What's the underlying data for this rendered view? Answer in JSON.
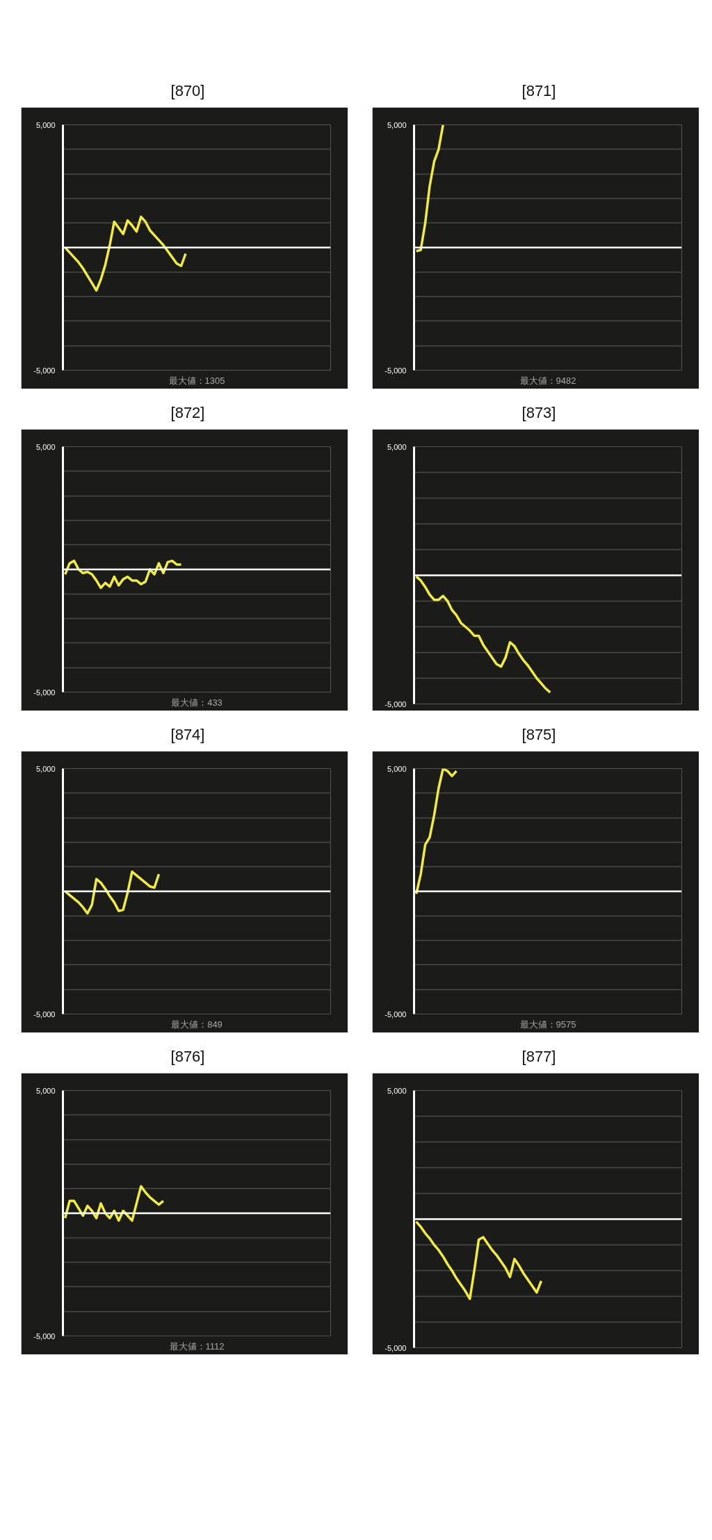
{
  "chart_data": [
    {
      "type": "line",
      "title": "[870]",
      "categories": [
        null,
        null,
        null,
        null,
        null,
        null,
        null,
        null,
        null,
        null,
        null,
        null,
        null,
        null,
        null,
        null,
        null,
        null,
        null,
        null,
        null,
        null,
        null,
        null,
        null,
        null,
        null,
        null,
        null,
        null,
        null,
        null,
        null,
        null,
        null,
        null,
        null,
        null,
        null,
        null,
        null,
        null,
        null,
        null,
        null,
        null,
        null,
        null,
        null,
        null,
        null,
        null,
        null,
        null,
        null,
        null,
        null,
        null,
        null,
        null
      ],
      "series": [
        {
          "color": "#f2ec3a",
          "values": [
            0,
            -200,
            -400,
            -600,
            -850,
            -1150,
            -1450,
            -1750,
            -1300,
            -700,
            100,
            1050,
            800,
            550,
            1100,
            900,
            650,
            1250,
            1050,
            700,
            500,
            300,
            100,
            -150,
            -400,
            -650,
            -750,
            -250,
            null,
            null,
            null,
            null,
            null,
            null,
            null,
            null,
            null,
            null,
            null,
            null,
            null,
            null,
            null,
            null,
            null,
            null,
            null,
            null,
            null,
            null,
            null,
            null,
            null,
            null,
            null,
            null,
            null,
            null,
            null,
            null
          ]
        }
      ],
      "ylim": [
        -5000,
        5000
      ],
      "yticks": [
        {
          "value": -5000,
          "label": "-5,000"
        },
        {
          "value": -4000,
          "label": null
        },
        {
          "value": -3000,
          "label": null
        },
        {
          "value": -2000,
          "label": null
        },
        {
          "value": -1000,
          "label": null
        },
        {
          "value": 0,
          "label": null
        },
        {
          "value": 1000,
          "label": null
        },
        {
          "value": 2000,
          "label": null
        },
        {
          "value": 3000,
          "label": null
        },
        {
          "value": 4000,
          "label": null
        },
        {
          "value": 5000,
          "label": "5,000"
        }
      ],
      "grid": "y",
      "tick_labels": "y",
      "ref_lines": [
        {
          "axis": "y",
          "value": 0,
          "color": "#ffffff"
        }
      ],
      "annotations": [
        "最大値：1305"
      ]
    },
    {
      "type": "line",
      "title": "[871]",
      "categories": [
        null,
        null,
        null,
        null,
        null,
        null,
        null,
        null,
        null,
        null,
        null,
        null,
        null,
        null,
        null,
        null,
        null,
        null,
        null,
        null,
        null,
        null,
        null,
        null,
        null,
        null,
        null,
        null,
        null,
        null,
        null,
        null,
        null,
        null,
        null,
        null,
        null,
        null,
        null,
        null,
        null,
        null,
        null,
        null,
        null,
        null,
        null,
        null,
        null,
        null,
        null,
        null,
        null,
        null,
        null,
        null,
        null,
        null,
        null,
        null
      ],
      "series": [
        {
          "color": "#f2ec3a",
          "values": [
            -150,
            -100,
            1000,
            2500,
            3500,
            4000,
            5000,
            null,
            null,
            null,
            null,
            null,
            null,
            null,
            null,
            null,
            null,
            null,
            null,
            null,
            null,
            null,
            null,
            null,
            null,
            null,
            null,
            null,
            null,
            null,
            null,
            null,
            null,
            null,
            null,
            null,
            null,
            null,
            null,
            null,
            null,
            null,
            null,
            null,
            null,
            null,
            null,
            null,
            null,
            null,
            null,
            null,
            null,
            null,
            null,
            null,
            null,
            null,
            null,
            null
          ]
        }
      ],
      "ylim": [
        -5000,
        5000
      ],
      "yticks": [
        {
          "value": -5000,
          "label": "-5,000"
        },
        {
          "value": -4000,
          "label": null
        },
        {
          "value": -3000,
          "label": null
        },
        {
          "value": -2000,
          "label": null
        },
        {
          "value": -1000,
          "label": null
        },
        {
          "value": 0,
          "label": null
        },
        {
          "value": 1000,
          "label": null
        },
        {
          "value": 2000,
          "label": null
        },
        {
          "value": 3000,
          "label": null
        },
        {
          "value": 4000,
          "label": null
        },
        {
          "value": 5000,
          "label": "5,000"
        }
      ],
      "grid": "y",
      "tick_labels": "y",
      "ref_lines": [
        {
          "axis": "y",
          "value": 0,
          "color": "#ffffff"
        }
      ],
      "annotations": [
        "最大値：9482"
      ]
    },
    {
      "type": "line",
      "title": "[872]",
      "categories": [
        null,
        null,
        null,
        null,
        null,
        null,
        null,
        null,
        null,
        null,
        null,
        null,
        null,
        null,
        null,
        null,
        null,
        null,
        null,
        null,
        null,
        null,
        null,
        null,
        null,
        null,
        null,
        null,
        null,
        null,
        null,
        null,
        null,
        null,
        null,
        null,
        null,
        null,
        null,
        null,
        null,
        null,
        null,
        null,
        null,
        null,
        null,
        null,
        null,
        null,
        null,
        null,
        null,
        null,
        null,
        null,
        null,
        null,
        null,
        null
      ],
      "series": [
        {
          "color": "#f2ec3a",
          "values": [
            -200,
            250,
            350,
            0,
            -150,
            -100,
            -200,
            -450,
            -750,
            -550,
            -700,
            -300,
            -650,
            -400,
            -300,
            -450,
            -450,
            -600,
            -500,
            0,
            -200,
            250,
            -150,
            300,
            350,
            200,
            200,
            null,
            null,
            null,
            null,
            null,
            null,
            null,
            null,
            null,
            null,
            null,
            null,
            null,
            null,
            null,
            null,
            null,
            null,
            null,
            null,
            null,
            null,
            null,
            null,
            null,
            null,
            null,
            null,
            null,
            null,
            null,
            null,
            null
          ]
        }
      ],
      "ylim": [
        -5000,
        5000
      ],
      "yticks": [
        {
          "value": -5000,
          "label": "-5,000"
        },
        {
          "value": -4000,
          "label": null
        },
        {
          "value": -3000,
          "label": null
        },
        {
          "value": -2000,
          "label": null
        },
        {
          "value": -1000,
          "label": null
        },
        {
          "value": 0,
          "label": null
        },
        {
          "value": 1000,
          "label": null
        },
        {
          "value": 2000,
          "label": null
        },
        {
          "value": 3000,
          "label": null
        },
        {
          "value": 4000,
          "label": null
        },
        {
          "value": 5000,
          "label": "5,000"
        }
      ],
      "grid": "y",
      "tick_labels": "y",
      "ref_lines": [
        {
          "axis": "y",
          "value": 0,
          "color": "#ffffff"
        }
      ],
      "annotations": [
        "最大値：433"
      ]
    },
    {
      "type": "line",
      "title": "[873]",
      "categories": [
        null,
        null,
        null,
        null,
        null,
        null,
        null,
        null,
        null,
        null,
        null,
        null,
        null,
        null,
        null,
        null,
        null,
        null,
        null,
        null,
        null,
        null,
        null,
        null,
        null,
        null,
        null,
        null,
        null,
        null,
        null,
        null,
        null,
        null,
        null,
        null,
        null,
        null,
        null,
        null,
        null,
        null,
        null,
        null,
        null,
        null,
        null,
        null,
        null,
        null,
        null,
        null,
        null,
        null,
        null,
        null,
        null,
        null,
        null,
        null
      ],
      "series": [
        {
          "color": "#f2ec3a",
          "values": [
            -50,
            -200,
            -450,
            -750,
            -950,
            -950,
            -800,
            -1000,
            -1350,
            -1550,
            -1850,
            -2000,
            -2150,
            -2350,
            -2350,
            -2700,
            -2950,
            -3200,
            -3450,
            -3550,
            -3200,
            -2600,
            -2750,
            -3050,
            -3300,
            -3500,
            -3750,
            -4000,
            -4200,
            -4400,
            -4550,
            null,
            null,
            null,
            null,
            null,
            null,
            null,
            null,
            null,
            null,
            null,
            null,
            null,
            null,
            null,
            null,
            null,
            null,
            null,
            null,
            null,
            null,
            null,
            null,
            null,
            null,
            null,
            null,
            null
          ]
        }
      ],
      "ylim": [
        -5000,
        5000
      ],
      "yticks": [
        {
          "value": -5000,
          "label": "-5,000"
        },
        {
          "value": -4000,
          "label": null
        },
        {
          "value": -3000,
          "label": null
        },
        {
          "value": -2000,
          "label": null
        },
        {
          "value": -1000,
          "label": null
        },
        {
          "value": 0,
          "label": null
        },
        {
          "value": 1000,
          "label": null
        },
        {
          "value": 2000,
          "label": null
        },
        {
          "value": 3000,
          "label": null
        },
        {
          "value": 4000,
          "label": null
        },
        {
          "value": 5000,
          "label": "5,000"
        }
      ],
      "grid": "y",
      "tick_labels": "y",
      "ref_lines": [
        {
          "axis": "y",
          "value": 0,
          "color": "#ffffff"
        }
      ]
    },
    {
      "type": "line",
      "title": "[874]",
      "categories": [
        null,
        null,
        null,
        null,
        null,
        null,
        null,
        null,
        null,
        null,
        null,
        null,
        null,
        null,
        null,
        null,
        null,
        null,
        null,
        null,
        null,
        null,
        null,
        null,
        null,
        null,
        null,
        null,
        null,
        null,
        null,
        null,
        null,
        null,
        null,
        null,
        null,
        null,
        null,
        null,
        null,
        null,
        null,
        null,
        null,
        null,
        null,
        null,
        null,
        null,
        null,
        null,
        null,
        null,
        null,
        null,
        null,
        null,
        null,
        null
      ],
      "series": [
        {
          "color": "#f2ec3a",
          "values": [
            0,
            -150,
            -300,
            -450,
            -650,
            -900,
            -550,
            500,
            350,
            100,
            -200,
            -450,
            -800,
            -750,
            -50,
            800,
            650,
            500,
            350,
            200,
            150,
            700,
            null,
            null,
            null,
            null,
            null,
            null,
            null,
            null,
            null,
            null,
            null,
            null,
            null,
            null,
            null,
            null,
            null,
            null,
            null,
            null,
            null,
            null,
            null,
            null,
            null,
            null,
            null,
            null,
            null,
            null,
            null,
            null,
            null,
            null,
            null,
            null,
            null,
            null
          ]
        }
      ],
      "ylim": [
        -5000,
        5000
      ],
      "yticks": [
        {
          "value": -5000,
          "label": "-5,000"
        },
        {
          "value": -4000,
          "label": null
        },
        {
          "value": -3000,
          "label": null
        },
        {
          "value": -2000,
          "label": null
        },
        {
          "value": -1000,
          "label": null
        },
        {
          "value": 0,
          "label": null
        },
        {
          "value": 1000,
          "label": null
        },
        {
          "value": 2000,
          "label": null
        },
        {
          "value": 3000,
          "label": null
        },
        {
          "value": 4000,
          "label": null
        },
        {
          "value": 5000,
          "label": "5,000"
        }
      ],
      "grid": "y",
      "tick_labels": "y",
      "ref_lines": [
        {
          "axis": "y",
          "value": 0,
          "color": "#ffffff"
        }
      ],
      "annotations": [
        "最大値：849"
      ]
    },
    {
      "type": "line",
      "title": "[875]",
      "categories": [
        null,
        null,
        null,
        null,
        null,
        null,
        null,
        null,
        null,
        null,
        null,
        null,
        null,
        null,
        null,
        null,
        null,
        null,
        null,
        null,
        null,
        null,
        null,
        null,
        null,
        null,
        null,
        null,
        null,
        null,
        null,
        null,
        null,
        null,
        null,
        null,
        null,
        null,
        null,
        null,
        null,
        null,
        null,
        null,
        null,
        null,
        null,
        null,
        null,
        null,
        null,
        null,
        null,
        null,
        null,
        null,
        null,
        null,
        null,
        null
      ],
      "series": [
        {
          "color": "#f2ec3a",
          "values": [
            -100,
            700,
            1900,
            2200,
            3100,
            4200,
            5000,
            4900,
            4700,
            4900,
            null,
            null,
            null,
            null,
            null,
            null,
            null,
            null,
            null,
            null,
            null,
            null,
            null,
            null,
            null,
            null,
            null,
            null,
            null,
            null,
            null,
            null,
            null,
            null,
            null,
            null,
            null,
            null,
            null,
            null,
            null,
            null,
            null,
            null,
            null,
            null,
            null,
            null,
            null,
            null,
            null,
            null,
            null,
            null,
            null,
            null,
            null,
            null,
            null,
            null
          ]
        }
      ],
      "ylim": [
        -5000,
        5000
      ],
      "yticks": [
        {
          "value": -5000,
          "label": "-5,000"
        },
        {
          "value": -4000,
          "label": null
        },
        {
          "value": -3000,
          "label": null
        },
        {
          "value": -2000,
          "label": null
        },
        {
          "value": -1000,
          "label": null
        },
        {
          "value": 0,
          "label": null
        },
        {
          "value": 1000,
          "label": null
        },
        {
          "value": 2000,
          "label": null
        },
        {
          "value": 3000,
          "label": null
        },
        {
          "value": 4000,
          "label": null
        },
        {
          "value": 5000,
          "label": "5,000"
        }
      ],
      "grid": "y",
      "tick_labels": "y",
      "ref_lines": [
        {
          "axis": "y",
          "value": 0,
          "color": "#ffffff"
        }
      ],
      "annotations": [
        "最大値：9575"
      ]
    },
    {
      "type": "line",
      "title": "[876]",
      "categories": [
        null,
        null,
        null,
        null,
        null,
        null,
        null,
        null,
        null,
        null,
        null,
        null,
        null,
        null,
        null,
        null,
        null,
        null,
        null,
        null,
        null,
        null,
        null,
        null,
        null,
        null,
        null,
        null,
        null,
        null,
        null,
        null,
        null,
        null,
        null,
        null,
        null,
        null,
        null,
        null,
        null,
        null,
        null,
        null,
        null,
        null,
        null,
        null,
        null,
        null,
        null,
        null,
        null,
        null,
        null,
        null,
        null,
        null,
        null,
        null
      ],
      "series": [
        {
          "color": "#f2ec3a",
          "values": [
            -200,
            500,
            500,
            200,
            -100,
            300,
            100,
            -200,
            400,
            0,
            -200,
            100,
            -300,
            100,
            -100,
            -300,
            400,
            1100,
            850,
            650,
            500,
            350,
            500,
            null,
            null,
            null,
            null,
            null,
            null,
            null,
            null,
            null,
            null,
            null,
            null,
            null,
            null,
            null,
            null,
            null,
            null,
            null,
            null,
            null,
            null,
            null,
            null,
            null,
            null,
            null,
            null,
            null,
            null,
            null,
            null,
            null,
            null,
            null,
            null,
            null
          ]
        }
      ],
      "ylim": [
        -5000,
        5000
      ],
      "yticks": [
        {
          "value": -5000,
          "label": "-5,000"
        },
        {
          "value": -4000,
          "label": null
        },
        {
          "value": -3000,
          "label": null
        },
        {
          "value": -2000,
          "label": null
        },
        {
          "value": -1000,
          "label": null
        },
        {
          "value": 0,
          "label": null
        },
        {
          "value": 1000,
          "label": null
        },
        {
          "value": 2000,
          "label": null
        },
        {
          "value": 3000,
          "label": null
        },
        {
          "value": 4000,
          "label": null
        },
        {
          "value": 5000,
          "label": "5,000"
        }
      ],
      "grid": "y",
      "tick_labels": "y",
      "ref_lines": [
        {
          "axis": "y",
          "value": 0,
          "color": "#ffffff"
        }
      ],
      "annotations": [
        "最大値：1112"
      ]
    },
    {
      "type": "line",
      "title": "[877]",
      "categories": [
        null,
        null,
        null,
        null,
        null,
        null,
        null,
        null,
        null,
        null,
        null,
        null,
        null,
        null,
        null,
        null,
        null,
        null,
        null,
        null,
        null,
        null,
        null,
        null,
        null,
        null,
        null,
        null,
        null,
        null,
        null,
        null,
        null,
        null,
        null,
        null,
        null,
        null,
        null,
        null,
        null,
        null,
        null,
        null,
        null,
        null,
        null,
        null,
        null,
        null,
        null,
        null,
        null,
        null,
        null,
        null,
        null,
        null,
        null,
        null
      ],
      "series": [
        {
          "color": "#f2ec3a",
          "values": [
            -100,
            -300,
            -550,
            -750,
            -1000,
            -1200,
            -1450,
            -1750,
            -2000,
            -2300,
            -2550,
            -2800,
            -3100,
            -2000,
            -800,
            -700,
            -950,
            -1200,
            -1400,
            -1650,
            -1900,
            -2250,
            -1550,
            -1800,
            -2100,
            -2350,
            -2600,
            -2850,
            -2400,
            null,
            null,
            null,
            null,
            null,
            null,
            null,
            null,
            null,
            null,
            null,
            null,
            null,
            null,
            null,
            null,
            null,
            null,
            null,
            null,
            null,
            null,
            null,
            null,
            null,
            null,
            null,
            null,
            null,
            null,
            null
          ]
        }
      ],
      "ylim": [
        -5000,
        5000
      ],
      "yticks": [
        {
          "value": -5000,
          "label": "-5,000"
        },
        {
          "value": -4000,
          "label": null
        },
        {
          "value": -3000,
          "label": null
        },
        {
          "value": -2000,
          "label": null
        },
        {
          "value": -1000,
          "label": null
        },
        {
          "value": 0,
          "label": null
        },
        {
          "value": 1000,
          "label": null
        },
        {
          "value": 2000,
          "label": null
        },
        {
          "value": 3000,
          "label": null
        },
        {
          "value": 4000,
          "label": null
        },
        {
          "value": 5000,
          "label": "5,000"
        }
      ],
      "grid": "y",
      "tick_labels": "y",
      "ref_lines": [
        {
          "axis": "y",
          "value": 0,
          "color": "#ffffff"
        }
      ]
    }
  ]
}
